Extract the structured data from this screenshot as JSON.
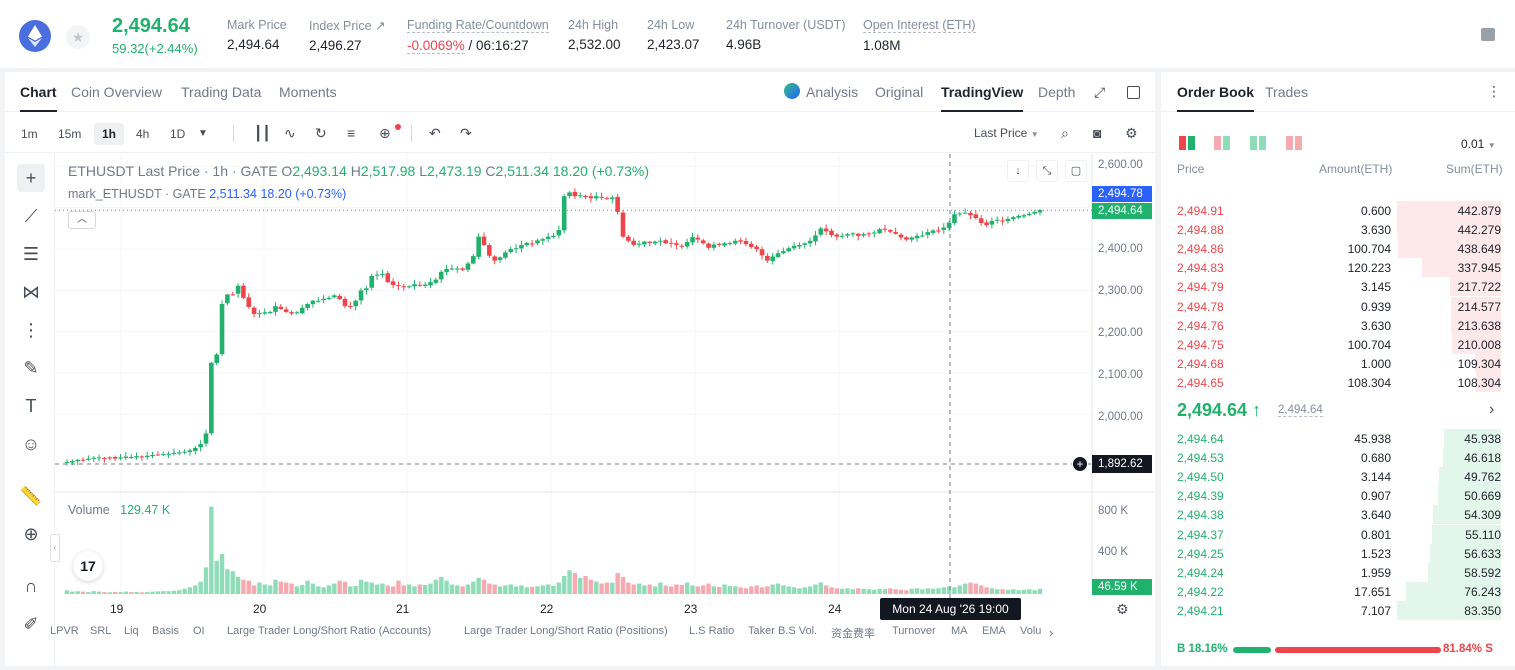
{
  "header": {
    "last_price": "2,494.64",
    "change": "59.32(+2.44%)",
    "stats": [
      {
        "label": "Mark Price",
        "value": "2,494.64"
      },
      {
        "label": "Index Price ↗",
        "value": "2,496.27"
      },
      {
        "label": "Funding Rate/Countdown",
        "value_neg": "-0.0069%",
        "value": " / 06:16:27"
      },
      {
        "label": "24h High",
        "value": "2,532.00"
      },
      {
        "label": "24h Low",
        "value": "2,423.07"
      },
      {
        "label": "24h Turnover (USDT)",
        "value": "4.96B"
      },
      {
        "label": "Open Interest (ETH)",
        "value": "1.08M"
      }
    ]
  },
  "chart_tabs": [
    "Chart",
    "Coin Overview",
    "Trading Data",
    "Moments"
  ],
  "view_tabs": [
    "Analysis",
    "Original",
    "TradingView",
    "Depth"
  ],
  "timeframes": [
    "1m",
    "15m",
    "1h",
    "4h",
    "1D"
  ],
  "price_type": "Last Price",
  "legend": {
    "symbol": "ETHUSDT Last Price · 1h · GATE",
    "o_label": "O",
    "o": "2,493.14",
    "h_label": "H",
    "h": "2,517.98",
    "l_label": "L",
    "l": "2,473.19",
    "c_label": "C",
    "c": "2,511.34",
    "chg": "18.20 (+0.73%)",
    "mark_symbol": "mark_ETHUSDT · GATE",
    "mark_val": "2,511.34",
    "mark_chg": "18.20 (+0.73%)"
  },
  "volume_legend": {
    "label": "Volume",
    "value": "129.47 K"
  },
  "price_axis": [
    "2,600.00",
    "2,500.00",
    "2,400.00",
    "2,300.00",
    "2,200.00",
    "2,100.00",
    "2,000.00"
  ],
  "volume_axis": [
    "800 K",
    "400 K"
  ],
  "price_tags": {
    "mark": "2,494.78",
    "last": "2,494.64",
    "crosshair": "1,892.62",
    "volume": "46.59 K"
  },
  "x_axis": [
    "19",
    "20",
    "21",
    "22",
    "23",
    "24"
  ],
  "crosshair_time": "Mon 24 Aug '26   19:00",
  "indicators": [
    "LPVR",
    "SRL",
    "Liq",
    "Basis",
    "OI",
    "Large Trader Long/Short Ratio (Accounts)",
    "Large Trader Long/Short Ratio (Positions)",
    "L.S Ratio",
    "Taker B.S Vol.",
    "资金费率",
    "Turnover",
    "MA",
    "EMA",
    "Volu"
  ],
  "colors": {
    "up": "#20b26c",
    "down": "#ef454a",
    "up_vol": "#8fdcb8",
    "down_vol": "#f7a9b0",
    "mark_tag": "#2962ff"
  },
  "chart_data": {
    "type": "candlestick",
    "series_name": "ETHUSDT Last Price",
    "ylim": [
      1880,
      2630
    ],
    "x_labels": [
      "19",
      "20",
      "21",
      "22",
      "23",
      "24"
    ],
    "closes": [
      1885,
      1887,
      1890,
      1889,
      1893,
      1895,
      1896,
      1894,
      1895,
      1893,
      1896,
      1898,
      1897,
      1899,
      1898,
      1900,
      1902,
      1903,
      1904,
      1905,
      1907,
      1908,
      1910,
      1913,
      1919,
      1928,
      1954,
      2125,
      2145,
      2267,
      2290,
      2290,
      2311,
      2282,
      2260,
      2243,
      2245,
      2247,
      2248,
      2262,
      2255,
      2248,
      2244,
      2247,
      2258,
      2267,
      2275,
      2275,
      2280,
      2282,
      2288,
      2279,
      2262,
      2262,
      2275,
      2300,
      2305,
      2335,
      2338,
      2340,
      2320,
      2313,
      2310,
      2309,
      2310,
      2315,
      2312,
      2314,
      2320,
      2326,
      2345,
      2352,
      2353,
      2353,
      2350,
      2365,
      2383,
      2430,
      2410,
      2384,
      2372,
      2380,
      2392,
      2400,
      2402,
      2410,
      2415,
      2412,
      2421,
      2424,
      2430,
      2432,
      2446,
      2528,
      2537,
      2528,
      2530,
      2526,
      2523,
      2528,
      2524,
      2522,
      2525,
      2490,
      2430,
      2420,
      2410,
      2413,
      2418,
      2415,
      2418,
      2420,
      2414,
      2413,
      2410,
      2408,
      2417,
      2429,
      2423,
      2414,
      2403,
      2411,
      2410,
      2414,
      2415,
      2420,
      2418,
      2412,
      2405,
      2400,
      2385,
      2372,
      2382,
      2390,
      2395,
      2402,
      2408,
      2410,
      2414,
      2420,
      2433,
      2450,
      2443,
      2434,
      2430,
      2432,
      2436,
      2438,
      2432,
      2436,
      2437,
      2440,
      2448,
      2448,
      2442,
      2437,
      2428,
      2423,
      2428,
      2432,
      2433,
      2441,
      2445,
      2445,
      2452,
      2464,
      2484,
      2486,
      2488,
      2482,
      2475,
      2463,
      2458,
      2468,
      2471,
      2469,
      2473,
      2477,
      2480,
      2482,
      2485,
      2490,
      2494
    ],
    "volume_ylim": [
      0,
      1000000
    ],
    "volumes_k": [
      40,
      25,
      30,
      25,
      20,
      30,
      25,
      20,
      18,
      22,
      20,
      25,
      20,
      22,
      18,
      20,
      25,
      28,
      30,
      30,
      35,
      40,
      55,
      70,
      90,
      130,
      280,
      920,
      350,
      420,
      260,
      240,
      180,
      150,
      140,
      90,
      120,
      100,
      90,
      150,
      130,
      120,
      110,
      80,
      95,
      140,
      110,
      80,
      70,
      90,
      110,
      140,
      130,
      80,
      85,
      150,
      130,
      120,
      100,
      110,
      90,
      80,
      140,
      90,
      100,
      80,
      100,
      95,
      110,
      150,
      180,
      140,
      100,
      90,
      80,
      100,
      130,
      170,
      150,
      110,
      100,
      80,
      90,
      100,
      80,
      90,
      70,
      75,
      80,
      90,
      100,
      85,
      120,
      190,
      250,
      220,
      170,
      190,
      150,
      130,
      110,
      120,
      120,
      220,
      180,
      120,
      100,
      110,
      90,
      100,
      80,
      120,
      90,
      80,
      100,
      95,
      120,
      90,
      80,
      90,
      110,
      80,
      75,
      100,
      85,
      80,
      70,
      60,
      80,
      90,
      70,
      80,
      100,
      110,
      90,
      80,
      70,
      60,
      70,
      80,
      100,
      120,
      90,
      70,
      60,
      55,
      60,
      50,
      60,
      55,
      50,
      45,
      55,
      50,
      60,
      50,
      45,
      40,
      55,
      60,
      50,
      60,
      55,
      60,
      70,
      80,
      70,
      90,
      110,
      120,
      110,
      90,
      70,
      60,
      50,
      50,
      45,
      50,
      40,
      45,
      50,
      40,
      55,
      70,
      46.59
    ]
  },
  "book": {
    "tabs": [
      "Order Book",
      "Trades"
    ],
    "precision": "0.01",
    "headers": {
      "price": "Price",
      "amount": "Amount(ETH)",
      "sum": "Sum(ETH)"
    },
    "asks": [
      {
        "price": "2,494.91",
        "amount": "0.600",
        "sum": "442.879",
        "depth": 1.0
      },
      {
        "price": "2,494.88",
        "amount": "3.630",
        "sum": "442.279",
        "depth": 0.998
      },
      {
        "price": "2,494.86",
        "amount": "100.704",
        "sum": "438.649",
        "depth": 0.99
      },
      {
        "price": "2,494.83",
        "amount": "120.223",
        "sum": "337.945",
        "depth": 0.76
      },
      {
        "price": "2,494.79",
        "amount": "3.145",
        "sum": "217.722",
        "depth": 0.49
      },
      {
        "price": "2,494.78",
        "amount": "0.939",
        "sum": "214.577",
        "depth": 0.48
      },
      {
        "price": "2,494.76",
        "amount": "3.630",
        "sum": "213.638",
        "depth": 0.48
      },
      {
        "price": "2,494.75",
        "amount": "100.704",
        "sum": "210.008",
        "depth": 0.47
      },
      {
        "price": "2,494.68",
        "amount": "1.000",
        "sum": "109.304",
        "depth": 0.25
      },
      {
        "price": "2,494.65",
        "amount": "108.304",
        "sum": "108.304",
        "depth": 0.24
      }
    ],
    "mid_price": "2,494.64 ↑",
    "mid_mark": "2,494.64",
    "bids": [
      {
        "price": "2,494.64",
        "amount": "45.938",
        "sum": "45.938",
        "depth": 0.55
      },
      {
        "price": "2,494.53",
        "amount": "0.680",
        "sum": "46.618",
        "depth": 0.56
      },
      {
        "price": "2,494.50",
        "amount": "3.144",
        "sum": "49.762",
        "depth": 0.6
      },
      {
        "price": "2,494.39",
        "amount": "0.907",
        "sum": "50.669",
        "depth": 0.61
      },
      {
        "price": "2,494.38",
        "amount": "3.640",
        "sum": "54.309",
        "depth": 0.65
      },
      {
        "price": "2,494.37",
        "amount": "0.801",
        "sum": "55.110",
        "depth": 0.66
      },
      {
        "price": "2,494.25",
        "amount": "1.523",
        "sum": "56.633",
        "depth": 0.68
      },
      {
        "price": "2,494.24",
        "amount": "1.959",
        "sum": "58.592",
        "depth": 0.7
      },
      {
        "price": "2,494.22",
        "amount": "17.651",
        "sum": "76.243",
        "depth": 0.91
      },
      {
        "price": "2,494.21",
        "amount": "7.107",
        "sum": "83.350",
        "depth": 1.0
      }
    ],
    "buy_ratio": "B 18.16%",
    "sell_ratio": "81.84% S",
    "buy_fraction": 0.1816
  }
}
